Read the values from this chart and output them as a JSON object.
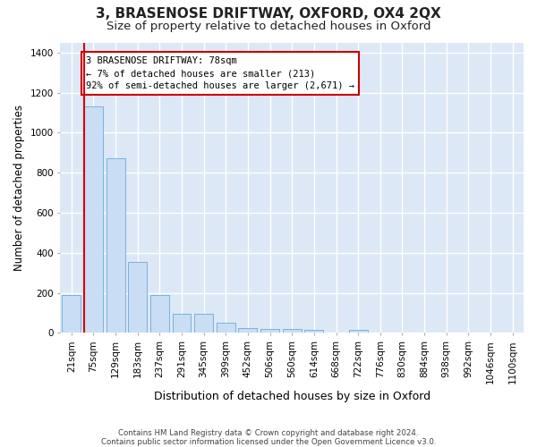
{
  "title": "3, BRASENOSE DRIFTWAY, OXFORD, OX4 2QX",
  "subtitle": "Size of property relative to detached houses in Oxford",
  "xlabel": "Distribution of detached houses by size in Oxford",
  "ylabel": "Number of detached properties",
  "categories": [
    "21sqm",
    "75sqm",
    "129sqm",
    "183sqm",
    "237sqm",
    "291sqm",
    "345sqm",
    "399sqm",
    "452sqm",
    "506sqm",
    "560sqm",
    "614sqm",
    "668sqm",
    "722sqm",
    "776sqm",
    "830sqm",
    "884sqm",
    "938sqm",
    "992sqm",
    "1046sqm",
    "1100sqm"
  ],
  "values": [
    190,
    1130,
    870,
    355,
    190,
    95,
    95,
    50,
    25,
    20,
    20,
    15,
    0,
    15,
    0,
    0,
    0,
    0,
    0,
    0,
    0
  ],
  "bar_color": "#c9ddf5",
  "bar_edgecolor": "#6aabd6",
  "highlight_color": "#dd0000",
  "annotation_line1": "3 BRASENOSE DRIFTWAY: 78sqm",
  "annotation_line2": "← 7% of detached houses are smaller (213)",
  "annotation_line3": "92% of semi-detached houses are larger (2,671) →",
  "annotation_box_facecolor": "#ffffff",
  "annotation_box_edgecolor": "#cc0000",
  "ylim": [
    0,
    1450
  ],
  "yticks": [
    0,
    200,
    400,
    600,
    800,
    1000,
    1200,
    1400
  ],
  "title_fontsize": 11,
  "subtitle_fontsize": 9.5,
  "xlabel_fontsize": 9,
  "ylabel_fontsize": 8.5,
  "ann_fontsize": 7.5,
  "tick_fontsize": 7.5,
  "footer_line1": "Contains HM Land Registry data © Crown copyright and database right 2024.",
  "footer_line2": "Contains public sector information licensed under the Open Government Licence v3.0.",
  "fig_bg_color": "#ffffff",
  "plot_bg_color": "#dce8f5",
  "grid_color": "#ffffff"
}
